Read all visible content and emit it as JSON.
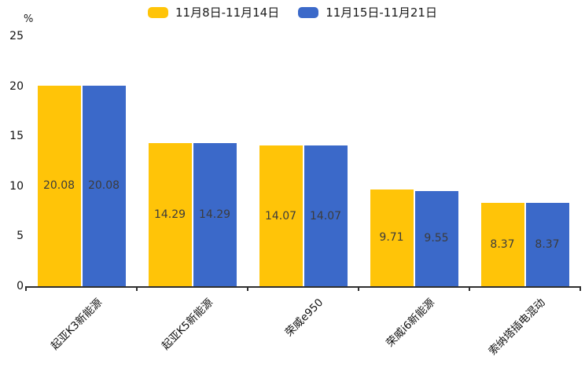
{
  "chart_data": {
    "type": "bar",
    "title": "",
    "unit_label": "%",
    "categories": [
      "起亚K3新能源",
      "起亚K5新能源",
      "荣威e950",
      "荣威i6新能源",
      "索纳塔插电混动"
    ],
    "series": [
      {
        "name": "11月8日-11月14日",
        "color": "#FFC408",
        "values": [
          20.08,
          14.29,
          14.07,
          9.71,
          8.37
        ]
      },
      {
        "name": "11月15日-11月21日",
        "color": "#3B69C9",
        "values": [
          20.08,
          14.29,
          14.07,
          9.55,
          8.37
        ]
      }
    ],
    "value_labels_shown": true,
    "value_label_color": "#3c3c3c",
    "ylim": [
      0,
      25
    ],
    "yticks": [
      0,
      5,
      10,
      15,
      20,
      25
    ],
    "legend_position": "top-center",
    "grid": false,
    "xlabel": "",
    "ylabel": "%"
  }
}
